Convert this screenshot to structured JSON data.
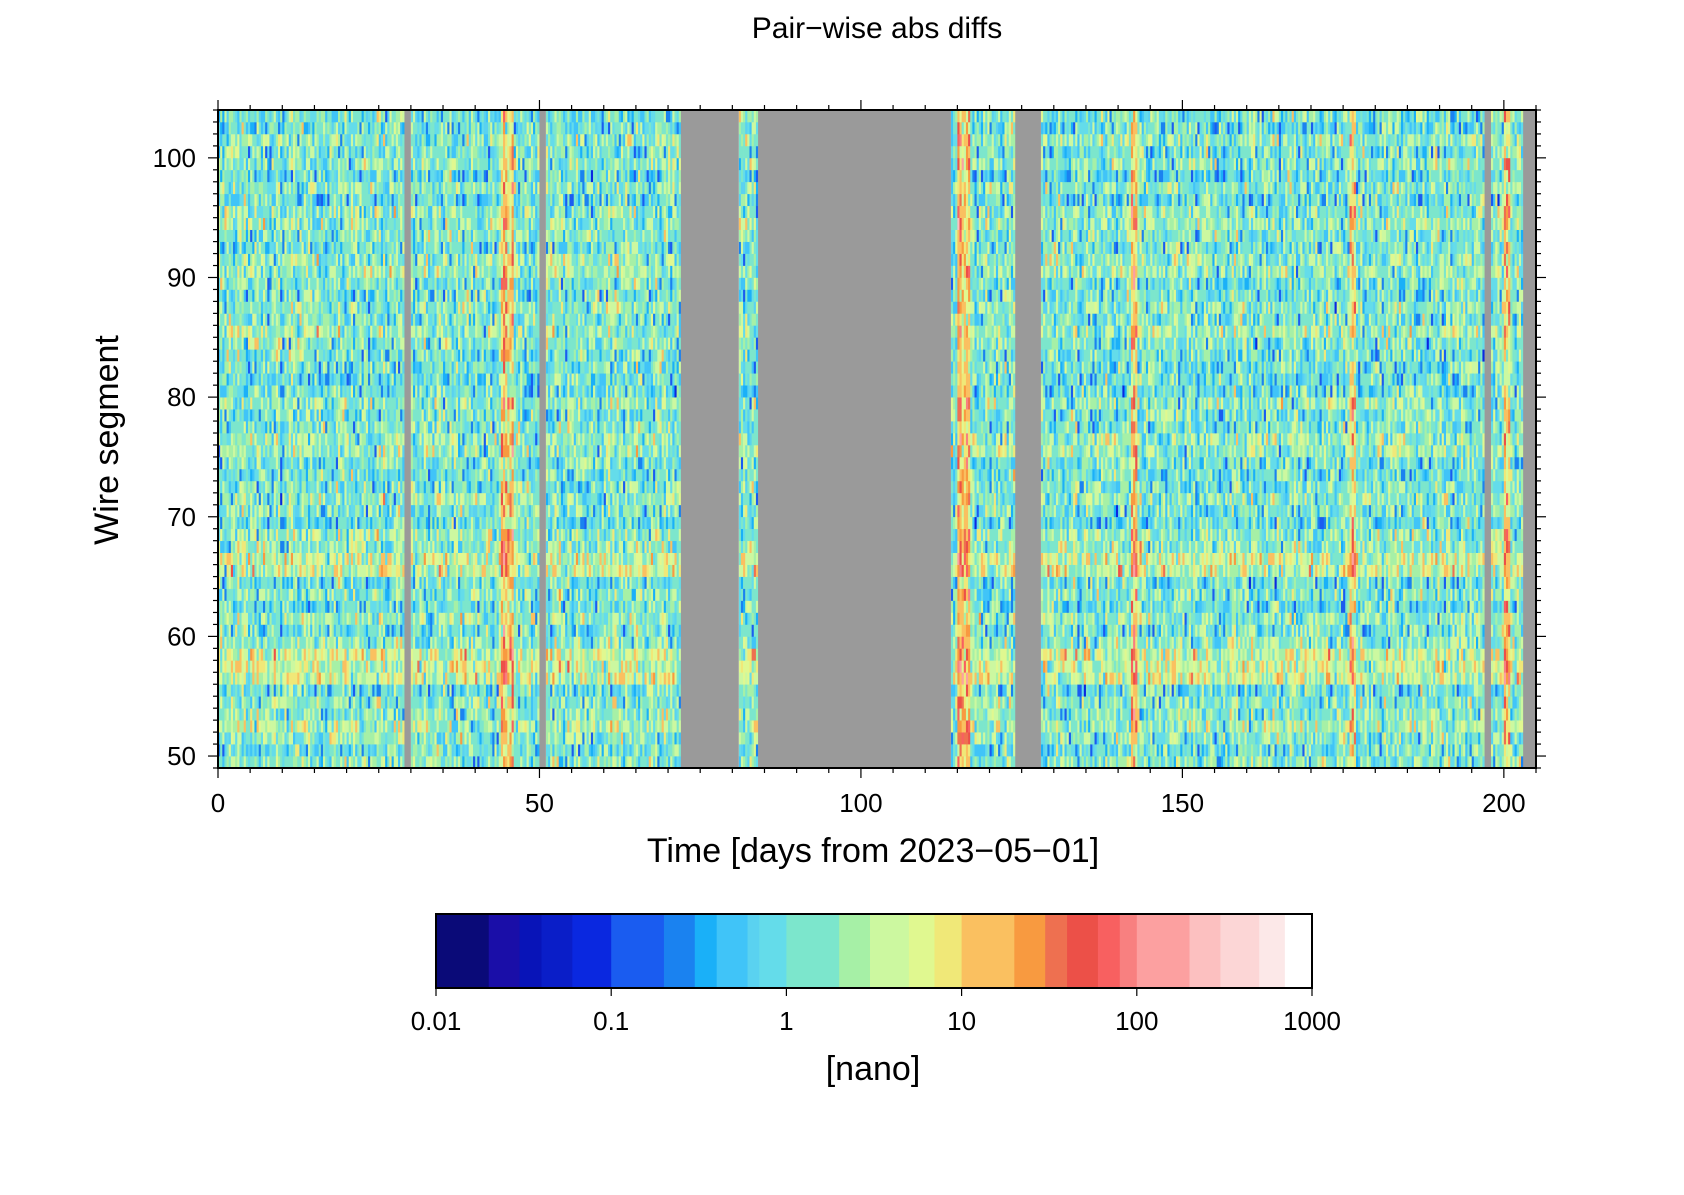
{
  "chart_data": {
    "type": "heatmap",
    "title": "Pair−wise abs diffs",
    "xlabel": "Time [days from 2023−05−01]",
    "ylabel": "Wire segment",
    "xlim": [
      0,
      205
    ],
    "ylim": [
      49,
      104
    ],
    "x_ticks": [
      0,
      50,
      100,
      150,
      200
    ],
    "y_ticks": [
      50,
      60,
      70,
      80,
      90,
      100
    ],
    "x_range_days": [
      0,
      204
    ],
    "y_range_segments": [
      49,
      103
    ],
    "scale": "log10",
    "no_data_color": "#9a9a9a",
    "no_data_day_ranges": [
      [
        29,
        29
      ],
      [
        50,
        50
      ],
      [
        72,
        80
      ],
      [
        84,
        113
      ],
      [
        124,
        127
      ],
      [
        197,
        197
      ],
      [
        203,
        204
      ]
    ],
    "notable_high_day_ranges": [
      [
        44,
        45
      ],
      [
        115,
        116
      ],
      [
        142,
        142
      ],
      [
        176,
        176
      ],
      [
        200,
        200
      ]
    ],
    "colorbar": {
      "label": "[nano]",
      "scale": "log",
      "range": [
        0.01,
        1000
      ],
      "ticks": [
        0.01,
        0.1,
        1,
        10,
        100,
        1000
      ],
      "tick_labels": [
        "0.01",
        "0.1",
        "1",
        "10",
        "100",
        "1000"
      ],
      "bins": [
        {
          "from": 0.01,
          "to": 0.02,
          "color": "#0a0a78"
        },
        {
          "from": 0.02,
          "to": 0.03,
          "color": "#1a0ea8"
        },
        {
          "from": 0.03,
          "to": 0.04,
          "color": "#0814b8"
        },
        {
          "from": 0.04,
          "to": 0.06,
          "color": "#0a1ec8"
        },
        {
          "from": 0.06,
          "to": 0.1,
          "color": "#0a28e0"
        },
        {
          "from": 0.1,
          "to": 0.2,
          "color": "#1a5cf0"
        },
        {
          "from": 0.2,
          "to": 0.3,
          "color": "#1a82f0"
        },
        {
          "from": 0.3,
          "to": 0.4,
          "color": "#1ab0f8"
        },
        {
          "from": 0.4,
          "to": 0.6,
          "color": "#40c4f8"
        },
        {
          "from": 0.6,
          "to": 0.7,
          "color": "#5ad2f0"
        },
        {
          "from": 0.7,
          "to": 1,
          "color": "#64dcea"
        },
        {
          "from": 1,
          "to": 2,
          "color": "#7ce6cc"
        },
        {
          "from": 2,
          "to": 3,
          "color": "#a6f0a6"
        },
        {
          "from": 3,
          "to": 5,
          "color": "#ccf8a0"
        },
        {
          "from": 5,
          "to": 7,
          "color": "#e0f890"
        },
        {
          "from": 7,
          "to": 10,
          "color": "#f0e878"
        },
        {
          "from": 10,
          "to": 20,
          "color": "#fac060"
        },
        {
          "from": 20,
          "to": 30,
          "color": "#f89a40"
        },
        {
          "from": 30,
          "to": 40,
          "color": "#ee7050"
        },
        {
          "from": 40,
          "to": 60,
          "color": "#ec5048"
        },
        {
          "from": 60,
          "to": 80,
          "color": "#f86060"
        },
        {
          "from": 80,
          "to": 100,
          "color": "#f88080"
        },
        {
          "from": 100,
          "to": 200,
          "color": "#fca0a0"
        },
        {
          "from": 200,
          "to": 300,
          "color": "#fcc0c0"
        },
        {
          "from": 300,
          "to": 500,
          "color": "#fcd6d6"
        },
        {
          "from": 500,
          "to": 700,
          "color": "#fce8e8"
        },
        {
          "from": 700,
          "to": 1000,
          "color": "#ffffff"
        }
      ]
    }
  }
}
